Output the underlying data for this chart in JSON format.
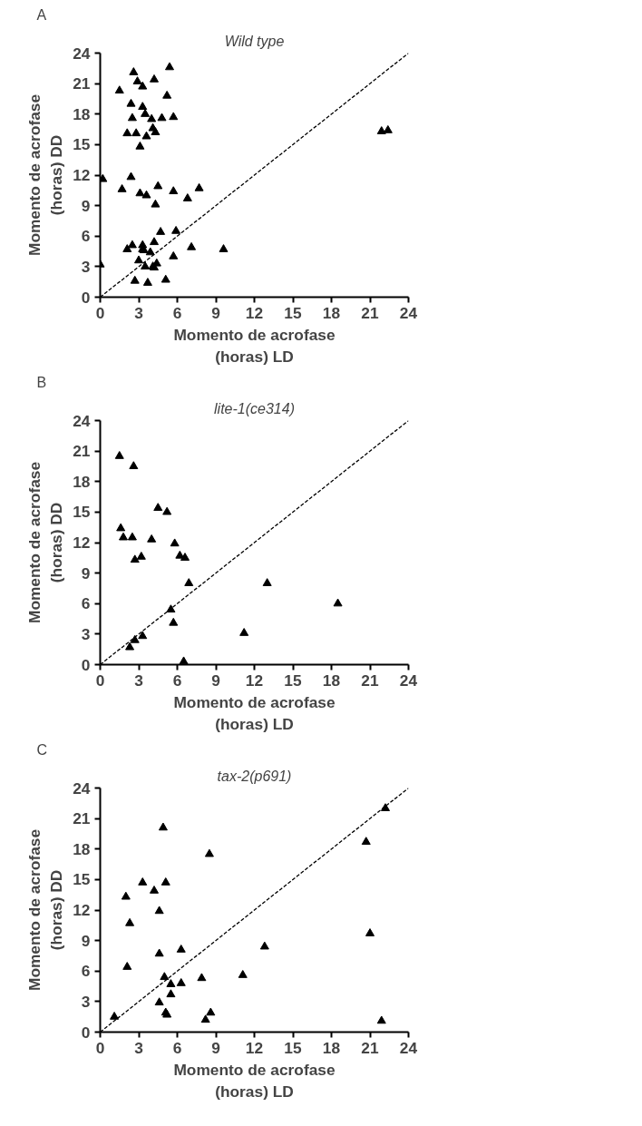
{
  "chart_data": [
    {
      "type": "scatter",
      "title": "A",
      "annotations": [
        "Wild type"
      ],
      "xlabel": "Momento de acrofase\n(horas) LD",
      "ylabel": "Momento de acrofase\n(horas) DD",
      "xlim": [
        0,
        24
      ],
      "ylim": [
        0,
        24
      ],
      "xticks": [
        0,
        3,
        6,
        9,
        12,
        15,
        18,
        21,
        24
      ],
      "yticks": [
        0,
        3,
        6,
        9,
        12,
        15,
        18,
        21,
        24
      ],
      "series": [
        {
          "marker": "triangle",
          "color": "#000000",
          "x": [
            2.6,
            5.4,
            1.5,
            2.9,
            3.3,
            4.2,
            5.2,
            2.4,
            3.3,
            3.5,
            2.5,
            4.0,
            4.8,
            5.7,
            2.1,
            2.8,
            3.6,
            4.1,
            4.3,
            3.1,
            0.2,
            2.4,
            1.7,
            3.1,
            3.6,
            4.5,
            4.3,
            5.7,
            6.8,
            7.7,
            0.0,
            2.1,
            2.5,
            3.3,
            3.3,
            3.4,
            3.9,
            4.2,
            4.7,
            5.9,
            7.1,
            9.6,
            3.0,
            3.5,
            4.1,
            4.4,
            4.2,
            5.7,
            2.7,
            3.7,
            5.1,
            21.9,
            22.4
          ],
          "values": [
            22.1,
            22.6,
            20.3,
            21.2,
            20.7,
            21.4,
            19.8,
            19.0,
            18.7,
            18.0,
            17.6,
            17.5,
            17.6,
            17.7,
            16.1,
            16.1,
            15.8,
            16.6,
            16.2,
            14.8,
            11.6,
            11.8,
            10.6,
            10.2,
            10.0,
            10.9,
            9.1,
            10.4,
            9.7,
            10.7,
            3.2,
            4.7,
            5.1,
            5.1,
            4.7,
            4.6,
            4.4,
            5.4,
            6.4,
            6.5,
            4.9,
            4.7,
            3.6,
            3.0,
            3.0,
            3.3,
            2.9,
            4.0,
            1.6,
            1.4,
            1.7,
            16.3,
            16.4
          ]
        },
        {
          "type": "line",
          "color": "#000000",
          "line_style": "dashed",
          "x": [
            0,
            24
          ],
          "values": [
            0,
            24
          ]
        }
      ]
    },
    {
      "type": "scatter",
      "title": "B",
      "annotations": [
        "lite-1(ce314)"
      ],
      "xlabel": "Momento de acrofase\n(horas) LD",
      "ylabel": "Momento de acrofase\n(horas) DD",
      "xlim": [
        0,
        24
      ],
      "ylim": [
        0,
        24
      ],
      "xticks": [
        0,
        3,
        6,
        9,
        12,
        15,
        18,
        21,
        24
      ],
      "yticks": [
        0,
        3,
        6,
        9,
        12,
        15,
        18,
        21,
        24
      ],
      "series": [
        {
          "marker": "triangle",
          "color": "#000000",
          "x": [
            1.5,
            2.6,
            1.6,
            1.8,
            2.5,
            2.7,
            3.2,
            4.0,
            4.5,
            5.2,
            5.8,
            6.2,
            6.6,
            6.9,
            5.5,
            5.7,
            3.3,
            2.7,
            2.3,
            6.5,
            11.2,
            13.0,
            18.5
          ],
          "values": [
            20.5,
            19.5,
            13.4,
            12.5,
            12.5,
            10.3,
            10.6,
            12.3,
            15.4,
            15.0,
            11.9,
            10.7,
            10.5,
            8.0,
            5.4,
            4.1,
            2.8,
            2.4,
            1.7,
            0.3,
            3.1,
            8.0,
            6.0
          ]
        },
        {
          "type": "line",
          "color": "#000000",
          "line_style": "dashed",
          "x": [
            0,
            24
          ],
          "values": [
            0,
            24
          ]
        }
      ]
    },
    {
      "type": "scatter",
      "title": "C",
      "annotations": [
        "tax-2(p691)"
      ],
      "xlabel": "Momento de acrofase\n(horas) LD",
      "ylabel": "Momento de acrofase\n(horas) DD",
      "xlim": [
        0,
        24
      ],
      "ylim": [
        0,
        24
      ],
      "xticks": [
        0,
        3,
        6,
        9,
        12,
        15,
        18,
        21,
        24
      ],
      "yticks": [
        0,
        3,
        6,
        9,
        12,
        15,
        18,
        21,
        24
      ],
      "series": [
        {
          "marker": "triangle",
          "color": "#000000",
          "x": [
            4.9,
            8.5,
            3.3,
            4.2,
            5.1,
            2.0,
            4.6,
            2.3,
            2.1,
            4.6,
            6.3,
            5.0,
            5.5,
            6.3,
            7.9,
            5.5,
            4.6,
            5.1,
            5.2,
            1.1,
            8.6,
            8.2,
            11.1,
            12.8,
            20.7,
            21.0,
            21.9,
            22.2
          ],
          "values": [
            20.1,
            17.5,
            14.7,
            13.9,
            14.7,
            13.3,
            11.9,
            10.7,
            6.4,
            7.7,
            8.1,
            5.4,
            4.7,
            4.8,
            5.3,
            3.7,
            2.9,
            1.9,
            1.7,
            1.5,
            1.9,
            1.2,
            5.6,
            8.4,
            18.7,
            9.7,
            1.1,
            22.0
          ]
        },
        {
          "type": "line",
          "color": "#000000",
          "line_style": "dashed",
          "x": [
            0,
            24
          ],
          "values": [
            0,
            24
          ]
        }
      ]
    }
  ]
}
